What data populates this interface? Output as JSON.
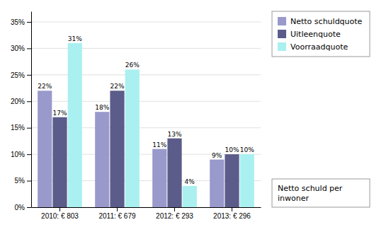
{
  "chart_data": {
    "type": "bar",
    "categories": [
      "2010: € 803",
      "2011: € 679",
      "2012: € 293",
      "2013: € 296"
    ],
    "series": [
      {
        "name": "Netto schuldquote",
        "color": "#9999cc",
        "values": [
          22,
          18,
          11,
          9
        ],
        "value_labels": [
          "22%",
          "18%",
          "11%",
          "9%"
        ]
      },
      {
        "name": "Uitleenquote",
        "color": "#5c5c8a",
        "values": [
          17,
          22,
          13,
          10
        ],
        "value_labels": [
          "17%",
          "22%",
          "13%",
          "10%"
        ]
      },
      {
        "name": "Voorraadquote",
        "color": "#aaf0f0",
        "values": [
          31,
          26,
          4,
          10
        ],
        "value_labels": [
          "31%",
          "26%",
          "4%",
          "10%"
        ]
      }
    ],
    "ylim": [
      0,
      37
    ],
    "yticks": [
      {
        "value": 0,
        "label": "0%"
      },
      {
        "value": 5,
        "label": "5%"
      },
      {
        "value": 10,
        "label": "10%"
      },
      {
        "value": 15,
        "label": "15%"
      },
      {
        "value": 20,
        "label": "20%"
      },
      {
        "value": 25,
        "label": "25%"
      },
      {
        "value": 30,
        "label": "30%"
      },
      {
        "value": 35,
        "label": "35%"
      }
    ],
    "grid": true,
    "legend": "right",
    "data_labels": true,
    "annotation": "Netto schuld per\ninwoner"
  }
}
